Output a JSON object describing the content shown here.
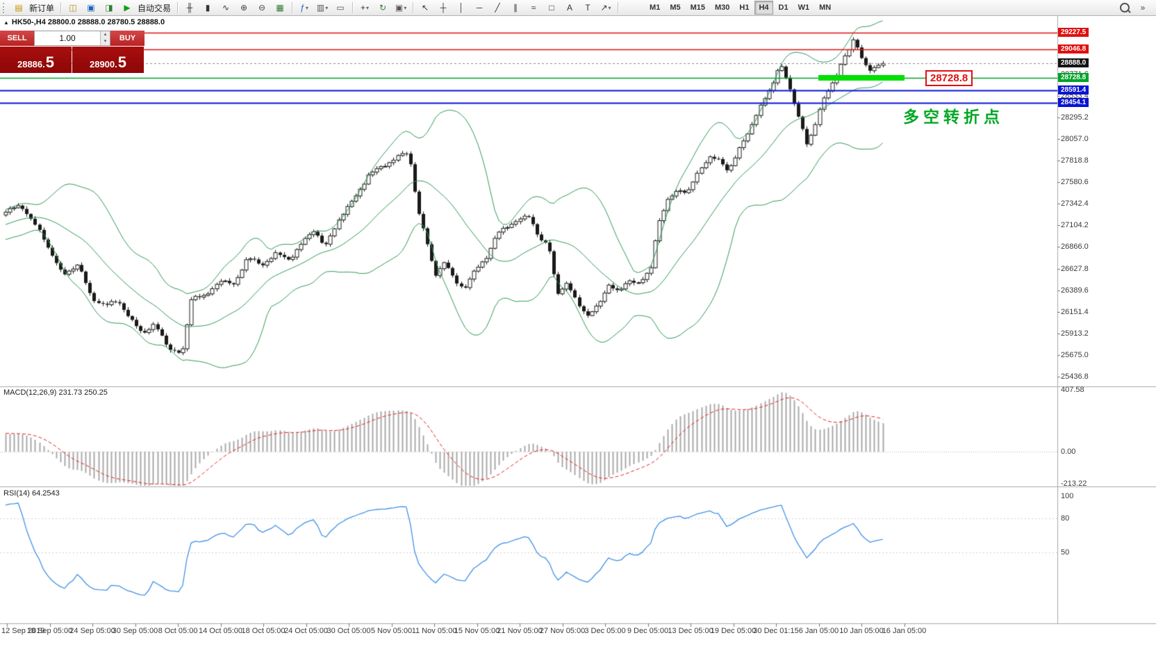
{
  "toolbar": {
    "buttons": [
      {
        "name": "new-order",
        "glyph": "▤",
        "color": "#c79200",
        "label": "新订单"
      },
      {
        "sep": true
      },
      {
        "name": "charts-window",
        "glyph": "◫",
        "color": "#b8860b"
      },
      {
        "name": "market-watch",
        "glyph": "▣",
        "color": "#1565c0"
      },
      {
        "name": "navigator",
        "glyph": "◨",
        "color": "#2e7d32"
      },
      {
        "name": "autotrading",
        "glyph": "▶",
        "color": "#14a014",
        "label": "自动交易"
      },
      {
        "sep": true
      },
      {
        "name": "bar-chart-mode",
        "glyph": "╫",
        "color": "#333333"
      },
      {
        "name": "candlestick-mode",
        "glyph": "▮",
        "color": "#333333"
      },
      {
        "name": "line-chart-mode",
        "glyph": "∿",
        "color": "#333333"
      },
      {
        "name": "zoom-in",
        "glyph": "⊕",
        "color": "#444444"
      },
      {
        "name": "zoom-out",
        "glyph": "⊖",
        "color": "#444444"
      },
      {
        "name": "tile-windows",
        "glyph": "▦",
        "color": "#2e7d32"
      },
      {
        "sep": true
      },
      {
        "name": "indicators",
        "glyph": "ƒ",
        "color": "#1565c0",
        "caret": true
      },
      {
        "name": "templates",
        "glyph": "▥",
        "color": "#555555",
        "caret": true
      },
      {
        "name": "cascade-windows",
        "glyph": "▭",
        "color": "#555555"
      },
      {
        "sep": true
      },
      {
        "name": "new-chart",
        "glyph": "+",
        "color": "#333333",
        "caret": true
      },
      {
        "name": "auto-scroll",
        "glyph": "↻",
        "color": "#2e7d32"
      },
      {
        "name": "screenshot",
        "glyph": "▣",
        "color": "#555555",
        "caret": true
      },
      {
        "sep": true
      },
      {
        "name": "cursor-tool",
        "glyph": "↖",
        "color": "#333333"
      },
      {
        "name": "crosshair-tool",
        "glyph": "┼",
        "color": "#333333"
      },
      {
        "name": "vertical-line-tool",
        "glyph": "│",
        "color": "#333333"
      },
      {
        "name": "horizontal-line-tool",
        "glyph": "─",
        "color": "#333333"
      },
      {
        "name": "trendline-tool",
        "glyph": "╱",
        "color": "#333333"
      },
      {
        "name": "channel-tool",
        "glyph": "∥",
        "color": "#333333"
      },
      {
        "name": "fibonacci-tool",
        "glyph": "≈",
        "color": "#333333"
      },
      {
        "name": "shapes-tool",
        "glyph": "□",
        "color": "#333333"
      },
      {
        "name": "text-tool",
        "glyph": "A",
        "color": "#333333"
      },
      {
        "name": "label-tool",
        "glyph": "T",
        "color": "#333333"
      },
      {
        "name": "arrows-tool",
        "glyph": "↗",
        "color": "#333333",
        "caret": true
      },
      {
        "sep": true
      }
    ],
    "timeframes": [
      "M1",
      "M5",
      "M15",
      "M30",
      "H1",
      "H4",
      "D1",
      "W1",
      "MN"
    ],
    "active_timeframe": "H4"
  },
  "icons": {
    "volume_up": "▴",
    "volume_down": "▾",
    "collapse_triangle": "▲",
    "quick_nav": "»"
  },
  "chart": {
    "header_text": "HK50-,H4  28800.0 28888.0 28780.5 28888.0"
  },
  "trade_panel": {
    "sell_label": "SELL",
    "buy_label": "BUY",
    "volume": "1.00",
    "sell_price_small": "28886.",
    "sell_price_big": "5",
    "buy_price_small": "28900.",
    "buy_price_big": "5"
  },
  "annotations": {
    "level_label": "28728.8",
    "turning_point": "多空转折点"
  },
  "price_axis": {
    "grid_labels": [
      "28771.6",
      "28533.4",
      "28295.2",
      "28057.0",
      "27818.8",
      "27580.6",
      "27342.4",
      "27104.2",
      "26866.0",
      "26627.8",
      "26389.6",
      "26151.4",
      "25913.2",
      "25675.0",
      "25436.8"
    ],
    "tags": [
      {
        "text": "29227.5",
        "price": 29227.5,
        "color": "#e01010"
      },
      {
        "text": "29046.8",
        "price": 29046.8,
        "color": "#e01010"
      },
      {
        "text": "28888.0",
        "price": 28888.0,
        "color": "#141414"
      },
      {
        "text": "28728.8",
        "price": 28728.8,
        "color": "#00a32a"
      },
      {
        "text": "28591.4",
        "price": 28591.4,
        "color": "#0a14d2"
      },
      {
        "text": "28454.1",
        "price": 28454.1,
        "color": "#0a14d2"
      }
    ]
  },
  "levels": [
    {
      "price": 29227.5,
      "color": "#e01010",
      "width": 1.4
    },
    {
      "price": 29046.8,
      "color": "#e01010",
      "width": 1.4
    },
    {
      "price": 28728.8,
      "color": "#00a32a",
      "width": 1.6
    },
    {
      "price": 28591.4,
      "color": "#0a14d2",
      "width": 2
    },
    {
      "price": 28454.1,
      "color": "#0a14d2",
      "width": 2
    }
  ],
  "macd_panel": {
    "label": "MACD(12,26,9) 231.73 250.25",
    "axis_labels": [
      "407.58",
      "0.00",
      "-213.22"
    ]
  },
  "rsi_panel": {
    "label": "RSI(14) 64.2543",
    "axis_labels": [
      "100",
      "80",
      "50"
    ],
    "levels": [
      80,
      50
    ]
  },
  "time_axis": {
    "labels": [
      "12 Sep 2019",
      "18 Sep 05:00",
      "24 Sep 05:00",
      "30 Sep 05:00",
      "8 Oct 05:00",
      "14 Oct 05:00",
      "18 Oct 05:00",
      "24 Oct 05:00",
      "30 Oct 05:00",
      "5 Nov 05:00",
      "11 Nov 05:00",
      "15 Nov 05:00",
      "21 Nov 05:00",
      "27 Nov 05:00",
      "3 Dec 05:00",
      "9 Dec 05:00",
      "13 Dec 05:00",
      "19 Dec 05:00",
      "30 Dec 01:15",
      "6 Jan 05:00",
      "10 Jan 05:00",
      "16 Jan 05:00"
    ]
  },
  "chart_data": {
    "type": "candlestick",
    "symbol": "HK50-",
    "timeframe": "H4",
    "ohlc": {
      "open": 28800.0,
      "high": 28888.0,
      "low": 28780.5,
      "close": 28888.0
    },
    "bid": 28886.5,
    "ask": 28900.5,
    "close_waypoints": [
      [
        -235,
        26400
      ],
      [
        -120,
        26950
      ],
      [
        8,
        27250
      ],
      [
        30,
        27330
      ],
      [
        60,
        27000
      ],
      [
        90,
        26550
      ],
      [
        112,
        26680
      ],
      [
        132,
        26300
      ],
      [
        152,
        26220
      ],
      [
        170,
        26280
      ],
      [
        188,
        26060
      ],
      [
        205,
        25920
      ],
      [
        222,
        26010
      ],
      [
        242,
        25760
      ],
      [
        262,
        25680
      ],
      [
        276,
        26340
      ],
      [
        296,
        26310
      ],
      [
        316,
        26510
      ],
      [
        336,
        26440
      ],
      [
        356,
        26760
      ],
      [
        376,
        26660
      ],
      [
        396,
        26790
      ],
      [
        416,
        26730
      ],
      [
        436,
        26920
      ],
      [
        452,
        27060
      ],
      [
        468,
        26860
      ],
      [
        490,
        27210
      ],
      [
        510,
        27400
      ],
      [
        530,
        27660
      ],
      [
        552,
        27760
      ],
      [
        572,
        27860
      ],
      [
        588,
        27910
      ],
      [
        602,
        27250
      ],
      [
        614,
        26920
      ],
      [
        626,
        26560
      ],
      [
        640,
        26700
      ],
      [
        654,
        26500
      ],
      [
        668,
        26410
      ],
      [
        684,
        26610
      ],
      [
        700,
        26760
      ],
      [
        716,
        27010
      ],
      [
        732,
        27110
      ],
      [
        746,
        27160
      ],
      [
        762,
        27210
      ],
      [
        776,
        26960
      ],
      [
        790,
        26860
      ],
      [
        802,
        26360
      ],
      [
        816,
        26460
      ],
      [
        830,
        26260
      ],
      [
        846,
        26110
      ],
      [
        860,
        26210
      ],
      [
        876,
        26460
      ],
      [
        890,
        26360
      ],
      [
        906,
        26510
      ],
      [
        920,
        26460
      ],
      [
        936,
        26610
      ],
      [
        946,
        27110
      ],
      [
        960,
        27360
      ],
      [
        976,
        27510
      ],
      [
        990,
        27460
      ],
      [
        1006,
        27710
      ],
      [
        1020,
        27860
      ],
      [
        1036,
        27810
      ],
      [
        1048,
        27710
      ],
      [
        1062,
        27910
      ],
      [
        1076,
        28110
      ],
      [
        1090,
        28360
      ],
      [
        1102,
        28510
      ],
      [
        1112,
        28660
      ],
      [
        1122,
        28910
      ],
      [
        1132,
        28710
      ],
      [
        1142,
        28460
      ],
      [
        1152,
        28260
      ],
      [
        1162,
        27990
      ],
      [
        1172,
        28160
      ],
      [
        1182,
        28460
      ],
      [
        1192,
        28610
      ],
      [
        1202,
        28710
      ],
      [
        1212,
        28910
      ],
      [
        1222,
        29060
      ],
      [
        1230,
        29180
      ],
      [
        1238,
        28960
      ],
      [
        1246,
        28860
      ],
      [
        1254,
        28810
      ],
      [
        1262,
        28880
      ],
      [
        1270,
        28888
      ]
    ],
    "indicators": {
      "bollinger": {
        "period": 20,
        "deviations": 2,
        "color": "#2e9b57"
      },
      "macd": {
        "fast": 12,
        "slow": 26,
        "signal": 9,
        "current_macd": 231.73,
        "current_signal": 250.25,
        "histogram_color": "#a8a8a8",
        "signal_color": "#e82020"
      },
      "rsi": {
        "period": 14,
        "current": 64.2543,
        "color": "#4090e8"
      }
    }
  }
}
